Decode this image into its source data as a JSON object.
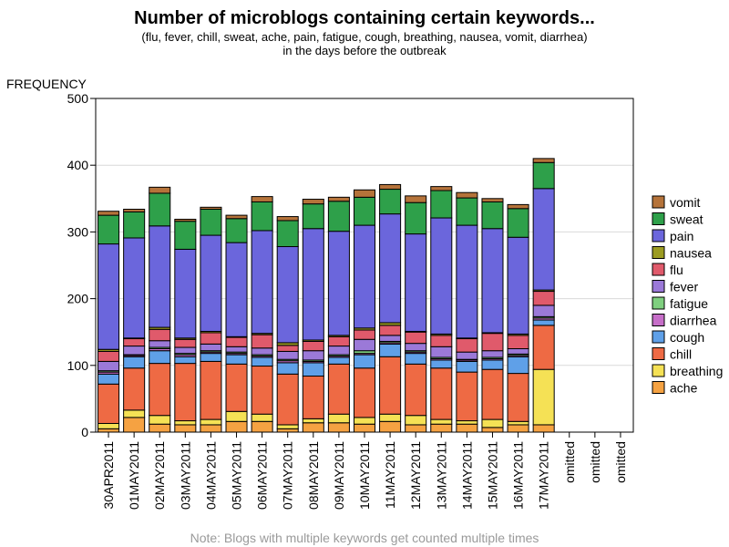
{
  "title": "Number of microblogs containing certain keywords...",
  "subtitle_line1": "(flu, fever, chill, sweat, ache, pain, fatigue, cough, breathing, nausea, vomit, diarrhea)",
  "subtitle_line2": "in the days before the outbreak",
  "footnote": "Note: Blogs with multiple keywords get counted multiple times",
  "chart_data": {
    "type": "bar",
    "stacked": true,
    "ylabel": "FREQUENCY",
    "ylim": [
      0,
      500
    ],
    "yticks": [
      0,
      100,
      200,
      300,
      400,
      500
    ],
    "grid": "horizontal",
    "legend_position": "right",
    "categories": [
      "30APR2011",
      "01MAY2011",
      "02MAY2011",
      "03MAY2011",
      "04MAY2011",
      "05MAY2011",
      "06MAY2011",
      "07MAY2011",
      "08MAY2011",
      "09MAY2011",
      "10MAY2011",
      "11MAY2011",
      "12MAY2011",
      "13MAY2011",
      "14MAY2011",
      "15MAY2011",
      "16MAY2011",
      "17MAY2011",
      "omitted",
      "omitted",
      "omitted"
    ],
    "series": [
      {
        "name": "ache",
        "color": "#f5a242",
        "values": [
          5,
          22,
          12,
          11,
          11,
          16,
          16,
          5,
          14,
          14,
          12,
          16,
          11,
          12,
          12,
          7,
          11,
          11,
          0,
          0,
          0
        ]
      },
      {
        "name": "breathing",
        "color": "#f5e155",
        "values": [
          8,
          11,
          13,
          6,
          8,
          15,
          11,
          6,
          6,
          13,
          10,
          11,
          14,
          7,
          5,
          12,
          5,
          83,
          0,
          0,
          0
        ]
      },
      {
        "name": "chill",
        "color": "#ee6a44",
        "values": [
          59,
          63,
          78,
          86,
          87,
          71,
          72,
          76,
          64,
          75,
          74,
          86,
          77,
          77,
          73,
          75,
          72,
          66,
          0,
          0,
          0
        ]
      },
      {
        "name": "cough",
        "color": "#5fa0e8",
        "values": [
          15,
          17,
          19,
          10,
          12,
          14,
          13,
          17,
          20,
          10,
          20,
          19,
          16,
          12,
          16,
          14,
          25,
          8,
          0,
          0,
          0
        ]
      },
      {
        "name": "diarrhea",
        "color": "#c66ec8",
        "values": [
          3,
          2,
          3,
          3,
          2,
          2,
          2,
          3,
          2,
          2,
          2,
          2,
          2,
          2,
          2,
          2,
          2,
          3,
          0,
          0,
          0
        ]
      },
      {
        "name": "fatigue",
        "color": "#7fcf7f",
        "values": [
          2,
          1,
          2,
          2,
          2,
          2,
          2,
          2,
          2,
          2,
          4,
          2,
          2,
          2,
          1,
          2,
          2,
          2,
          0,
          0,
          0
        ]
      },
      {
        "name": "fever",
        "color": "#9b79d8",
        "values": [
          14,
          13,
          10,
          9,
          10,
          8,
          10,
          12,
          14,
          13,
          17,
          9,
          11,
          16,
          11,
          10,
          8,
          17,
          0,
          0,
          0
        ]
      },
      {
        "name": "flu",
        "color": "#e05a6b",
        "values": [
          15,
          11,
          17,
          12,
          17,
          14,
          20,
          9,
          14,
          14,
          14,
          15,
          17,
          17,
          20,
          26,
          20,
          21,
          0,
          0,
          0
        ]
      },
      {
        "name": "nausea",
        "color": "#9c9c22",
        "values": [
          3,
          1,
          3,
          2,
          2,
          1,
          2,
          4,
          2,
          2,
          3,
          4,
          1,
          2,
          1,
          1,
          2,
          2,
          0,
          0,
          0
        ]
      },
      {
        "name": "pain",
        "color": "#6b66dc",
        "values": [
          158,
          150,
          152,
          133,
          144,
          141,
          154,
          144,
          167,
          156,
          154,
          163,
          146,
          174,
          169,
          156,
          145,
          152,
          0,
          0,
          0
        ]
      },
      {
        "name": "sweat",
        "color": "#2ea04a",
        "values": [
          43,
          39,
          49,
          42,
          39,
          36,
          43,
          39,
          37,
          45,
          42,
          37,
          47,
          41,
          41,
          40,
          43,
          39,
          0,
          0,
          0
        ]
      },
      {
        "name": "vomit",
        "color": "#b5733a",
        "values": [
          6,
          4,
          9,
          3,
          3,
          5,
          8,
          6,
          7,
          6,
          11,
          7,
          10,
          6,
          8,
          5,
          6,
          6,
          0,
          0,
          0
        ]
      }
    ]
  }
}
